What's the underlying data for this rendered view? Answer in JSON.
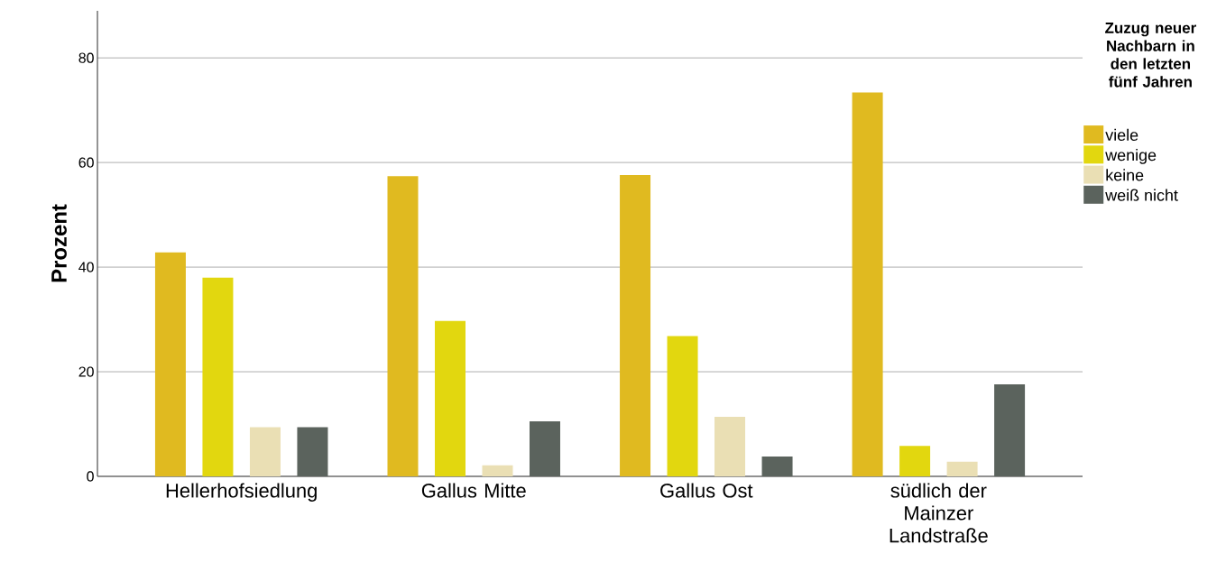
{
  "chart_data": {
    "type": "bar",
    "ylabel": "Prozent",
    "legend_title": "Zuzug neuer Nachbarn in den letzten fünf Jahren",
    "categories": [
      "Hellerhofsiedlung",
      "Gallus Mitte",
      "Gallus Ost",
      "südlich der Mainzer Landstraße"
    ],
    "series": [
      {
        "name": "viele",
        "color": "#e0ba20",
        "values": [
          42.8,
          57.4,
          57.6,
          73.4
        ]
      },
      {
        "name": "wenige",
        "color": "#e2d70f",
        "values": [
          38.0,
          29.7,
          26.8,
          5.8
        ]
      },
      {
        "name": "keine",
        "color": "#eadfb4",
        "values": [
          9.4,
          2.1,
          11.4,
          2.8
        ]
      },
      {
        "name": "weiß nicht",
        "color": "#5b635d",
        "values": [
          9.4,
          10.5,
          3.8,
          17.6
        ]
      }
    ],
    "ylim": [
      0,
      89
    ],
    "yticks": [
      0,
      20,
      40,
      60,
      80
    ],
    "grid": "y",
    "legend": "right"
  }
}
